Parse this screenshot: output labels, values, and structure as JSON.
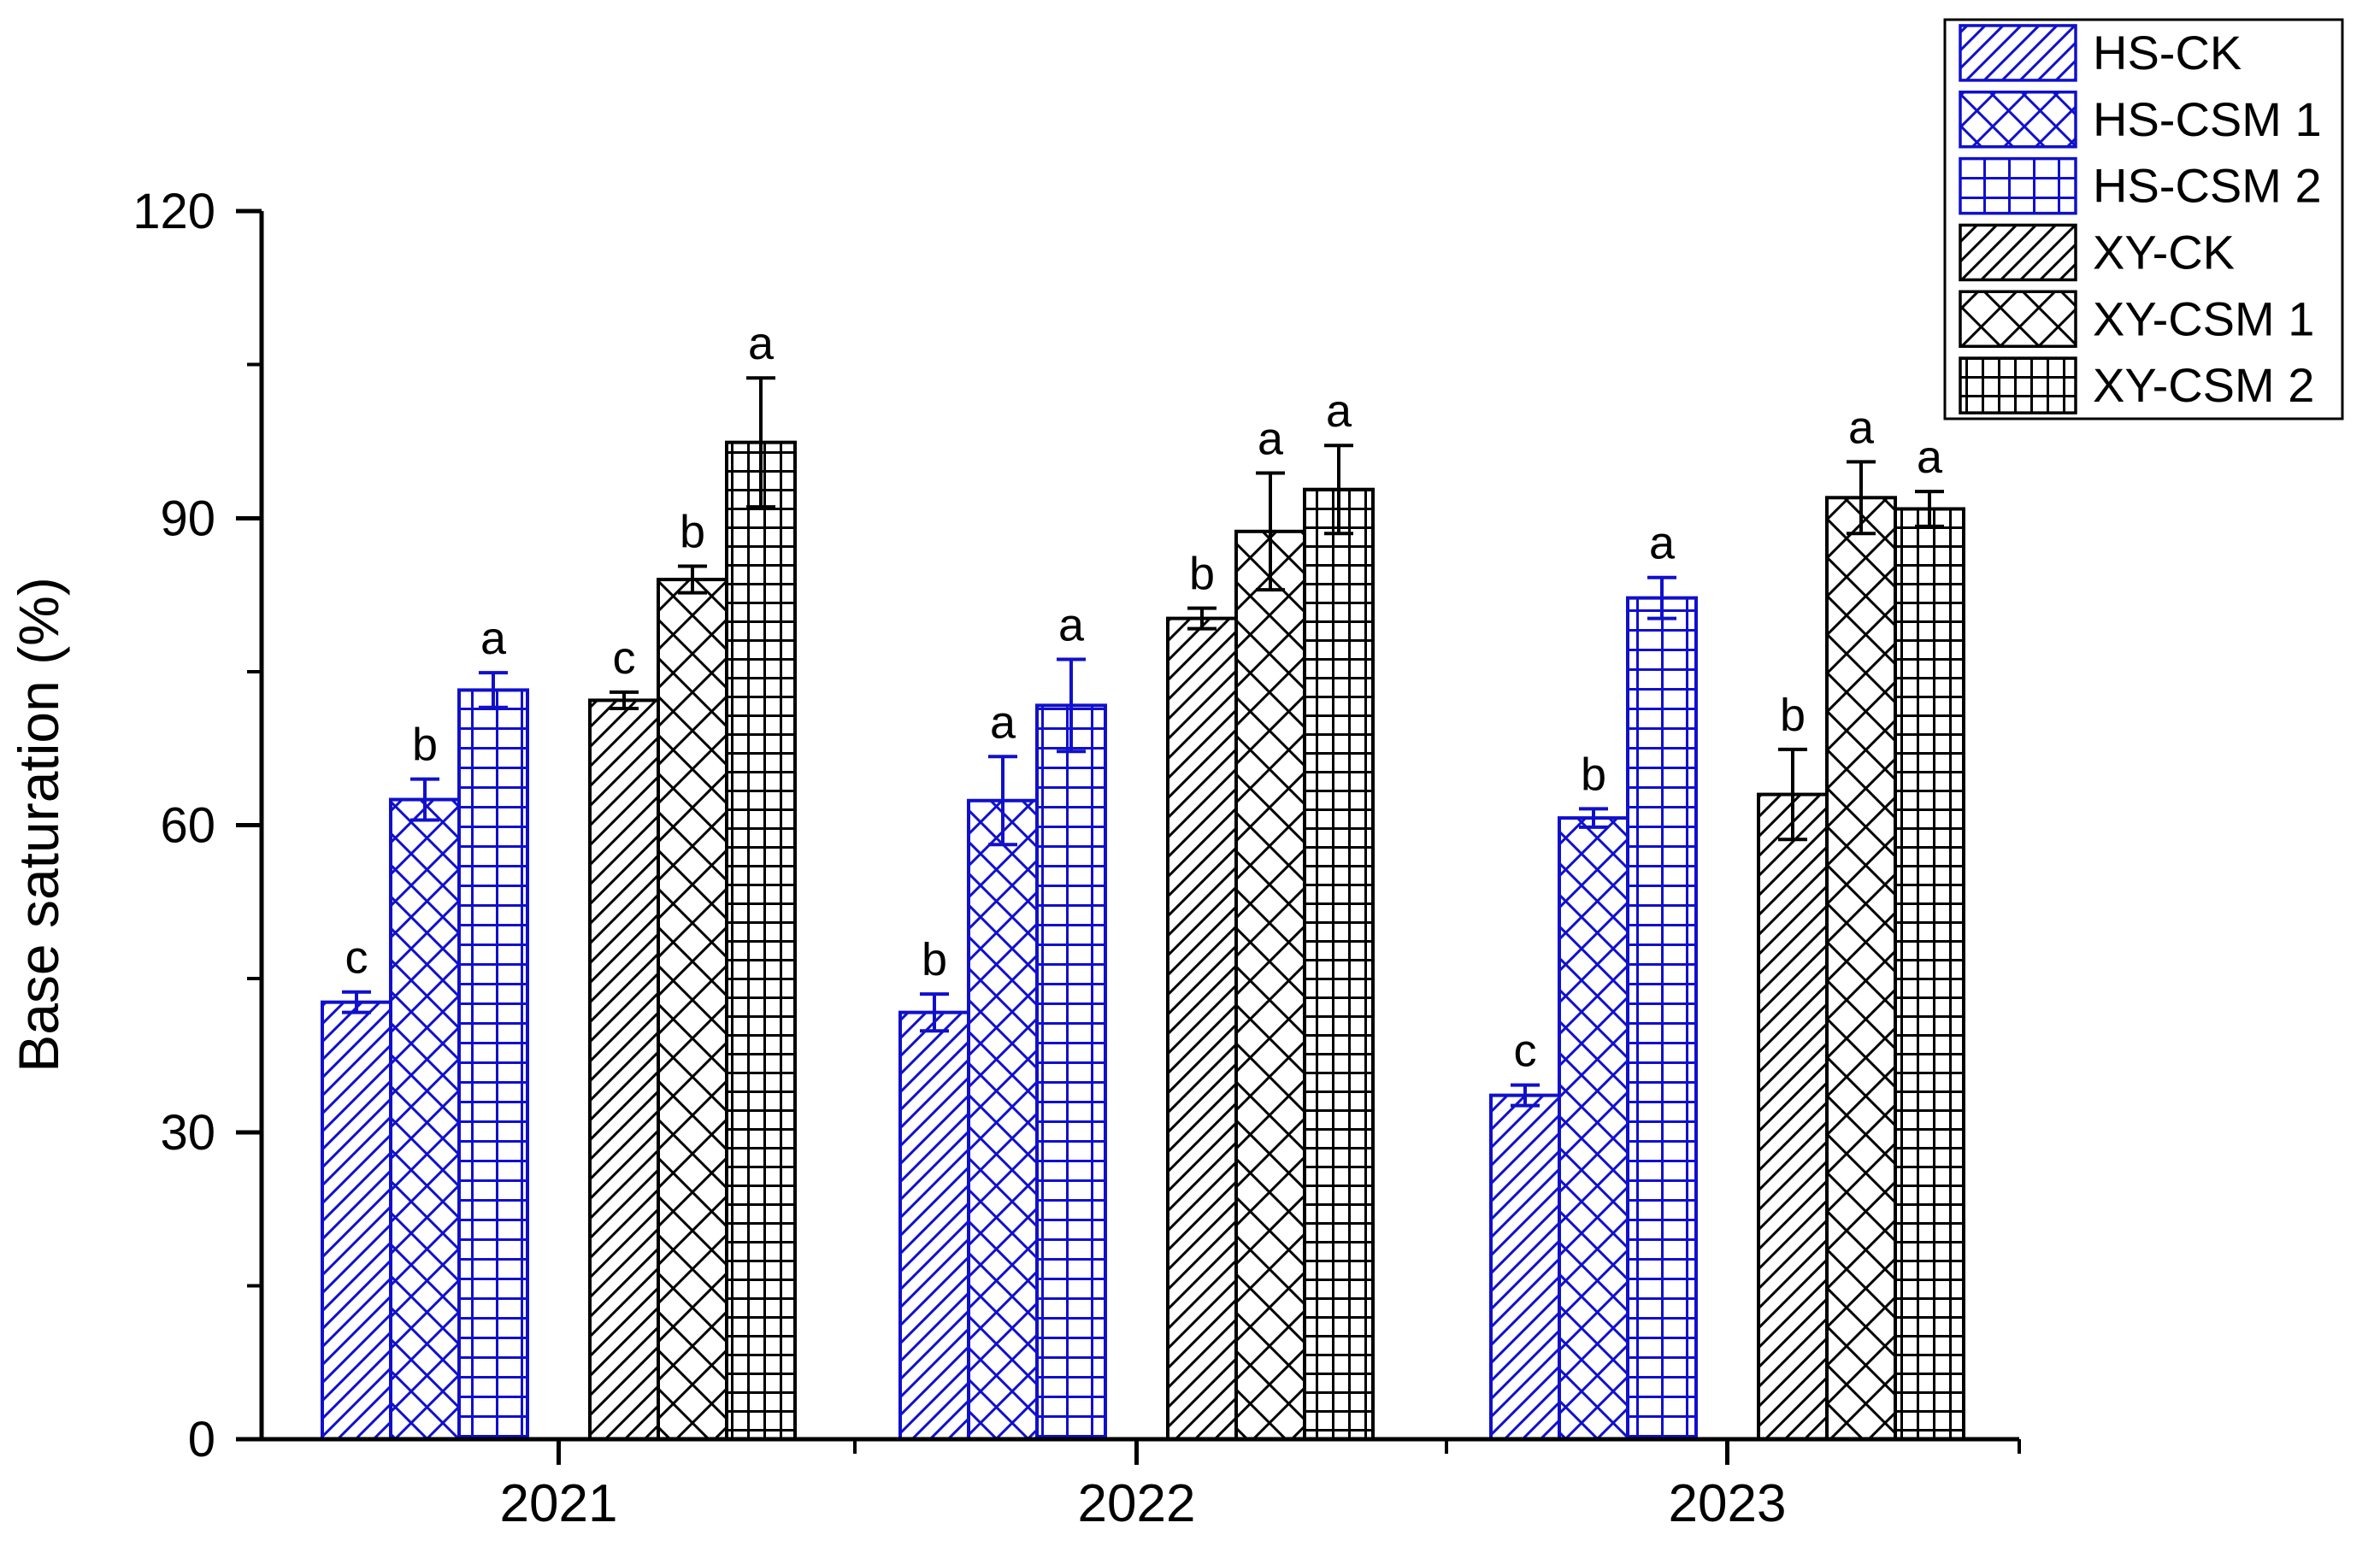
{
  "chart_data": {
    "type": "bar",
    "title": "",
    "xlabel": "",
    "ylabel": "Base saturation (%)",
    "categories": [
      "2021",
      "2022",
      "2023"
    ],
    "ylim": [
      0,
      120
    ],
    "yticks": [
      0,
      30,
      60,
      90,
      120
    ],
    "yticks_minor": [
      15,
      45,
      75,
      105
    ],
    "grid": false,
    "legend_position": "top-right",
    "error_bars": true,
    "colors": {
      "hs_blue": "#1010cc",
      "xy_black": "#000000",
      "text": "#000000",
      "background": "#ffffff"
    },
    "series": [
      {
        "name": "HS-CK",
        "color": "#1010cc",
        "hatch": "diagonal-hatch",
        "values": [
          42.7,
          41.7,
          33.6
        ],
        "errors": [
          1.0,
          1.8,
          1.0
        ],
        "letters": [
          "c",
          "b",
          "c"
        ]
      },
      {
        "name": "HS-CSM 1",
        "color": "#1010cc",
        "hatch": "cross-hatch",
        "values": [
          62.5,
          62.4,
          60.7
        ],
        "errors": [
          2.0,
          4.3,
          0.9
        ],
        "letters": [
          "b",
          "a",
          "b"
        ]
      },
      {
        "name": "HS-CSM 2",
        "color": "#1010cc",
        "hatch": "grid-hatch",
        "values": [
          73.2,
          71.7,
          82.2
        ],
        "errors": [
          1.7,
          4.5,
          2.0
        ],
        "letters": [
          "a",
          "a",
          "a"
        ]
      },
      {
        "name": "XY-CK",
        "color": "#000000",
        "hatch": "diagonal-hatch",
        "values": [
          72.2,
          80.2,
          63.0
        ],
        "errors": [
          0.8,
          1.0,
          4.4
        ],
        "letters": [
          "c",
          "b",
          "b"
        ]
      },
      {
        "name": "XY-CSM 1",
        "color": "#000000",
        "hatch": "cross-hatch",
        "values": [
          84.0,
          88.7,
          92.0
        ],
        "errors": [
          1.3,
          5.7,
          3.5
        ],
        "letters": [
          "b",
          "a",
          "a"
        ]
      },
      {
        "name": "XY-CSM 2",
        "color": "#000000",
        "hatch": "grid-hatch",
        "values": [
          97.4,
          92.8,
          90.9
        ],
        "errors": [
          6.3,
          4.3,
          1.7
        ],
        "letters": [
          "a",
          "a",
          "a"
        ]
      }
    ]
  }
}
